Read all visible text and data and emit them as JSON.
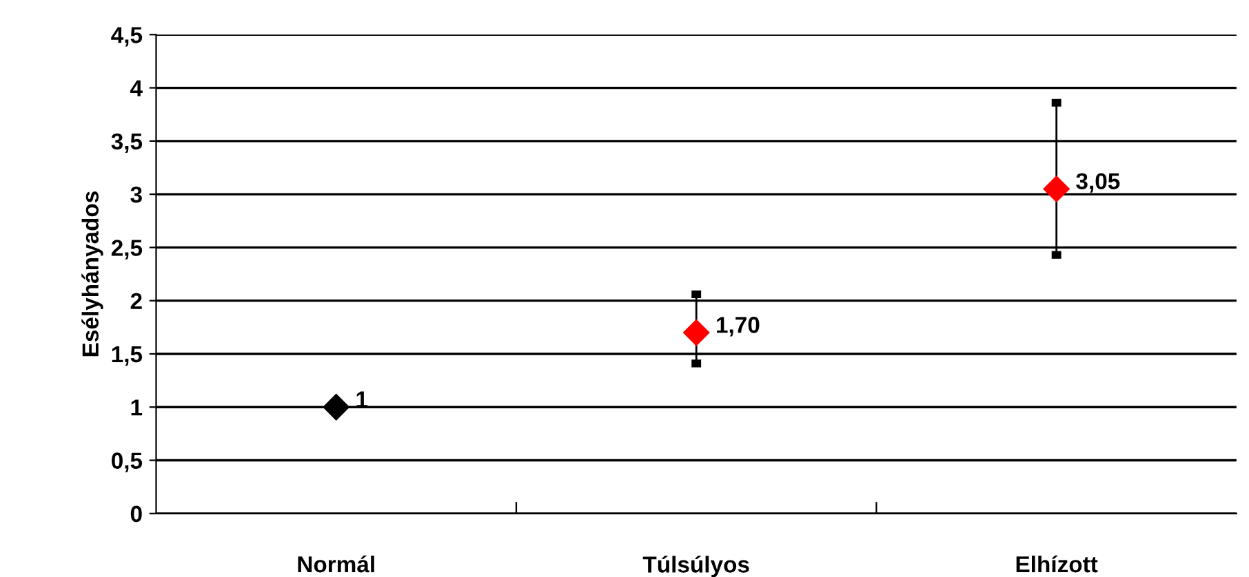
{
  "chart_data": {
    "type": "scatter",
    "ylabel": "Esélyhányados",
    "categories": [
      "Normál",
      "Túlsúlyos",
      "Elhízott"
    ],
    "values": [
      1,
      1.7,
      3.05
    ],
    "colors": [
      "#000000",
      "#ff0000",
      "#ff0000"
    ],
    "errors": [
      null,
      [
        1.41,
        2.06
      ],
      [
        2.43,
        3.86
      ]
    ],
    "value_labels": [
      "1",
      "1,70",
      "3,05"
    ],
    "marker": "diamond",
    "ylim": [
      0,
      4.5
    ],
    "yticks": [
      {
        "value": 0,
        "label": "0"
      },
      {
        "value": 0.5,
        "label": "0,5"
      },
      {
        "value": 1,
        "label": "1"
      },
      {
        "value": 1.5,
        "label": "1,5"
      },
      {
        "value": 2,
        "label": "2"
      },
      {
        "value": 2.5,
        "label": "2,5"
      },
      {
        "value": 3,
        "label": "3"
      },
      {
        "value": 3.5,
        "label": "3,5"
      },
      {
        "value": 4,
        "label": "4"
      },
      {
        "value": 4.5,
        "label": "4,5"
      }
    ],
    "grid": "y"
  }
}
